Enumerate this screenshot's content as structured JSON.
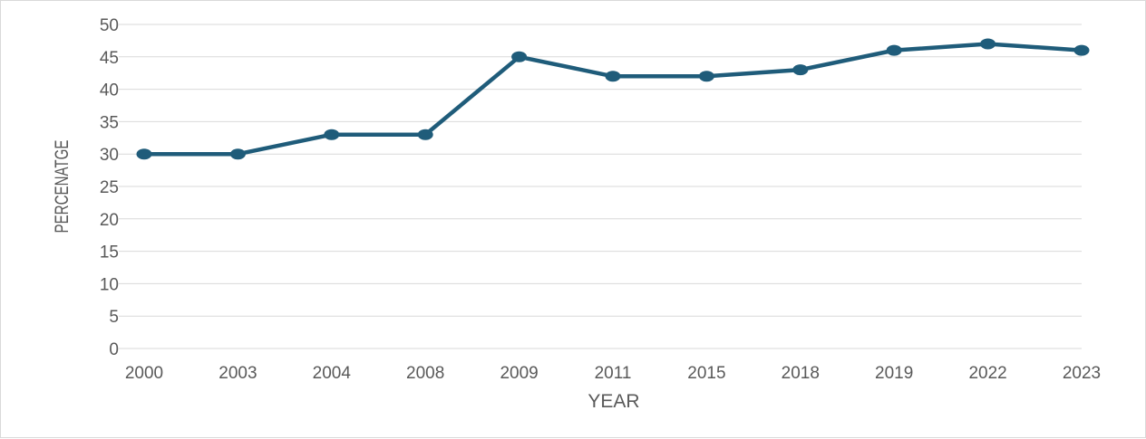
{
  "chart_data": {
    "type": "line",
    "categories": [
      "2000",
      "2003",
      "2004",
      "2008",
      "2009",
      "2011",
      "2015",
      "2018",
      "2019",
      "2022",
      "2023"
    ],
    "series": [
      {
        "values": [
          30,
          30,
          33,
          33,
          45,
          42,
          42,
          43,
          46,
          47,
          46
        ]
      }
    ],
    "xlabel": "YEAR",
    "ylabel": "PERCENATGE",
    "ylim": [
      0,
      50
    ],
    "yticks": [
      0,
      5,
      10,
      15,
      20,
      25,
      30,
      35,
      40,
      45,
      50
    ],
    "grid": "horizontal",
    "line_color": "#1f5c7a",
    "grid_color": "#d9d9d9",
    "text_color": "#595959"
  }
}
